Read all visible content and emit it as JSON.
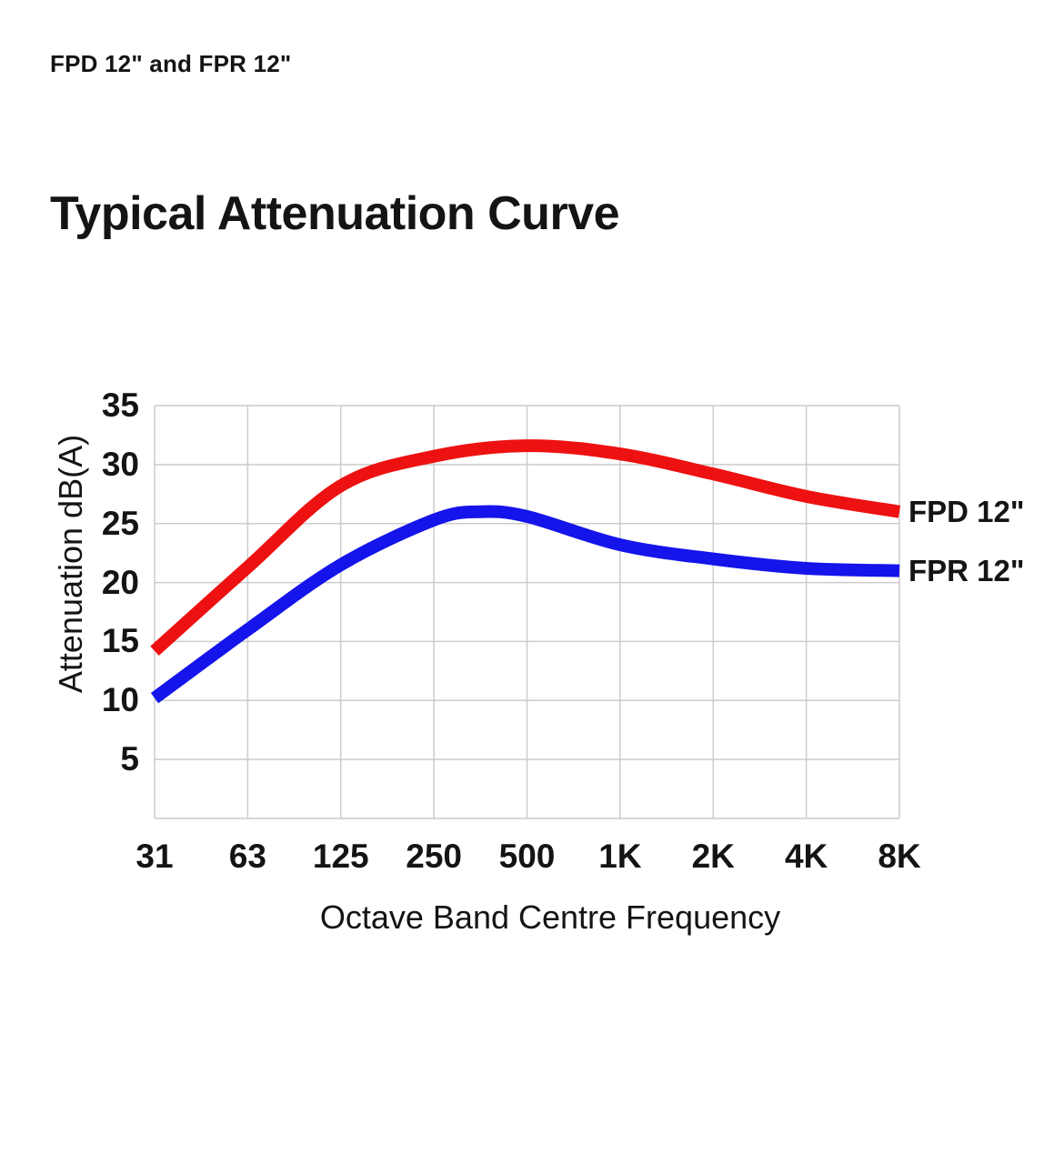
{
  "page": {
    "header_label": "FPD 12\" and FPR 12\""
  },
  "chart_data": {
    "type": "line",
    "title": "Typical Attenuation Curve",
    "xlabel": "Octave Band Centre Frequency",
    "ylabel": "Attenuation dB(A)",
    "categories": [
      "31",
      "63",
      "125",
      "250",
      "500",
      "1K",
      "2K",
      "4K",
      "8K"
    ],
    "category_freqs_hz": [
      31,
      63,
      125,
      250,
      500,
      1000,
      2000,
      4000,
      8000
    ],
    "y_ticks": [
      35,
      30,
      25,
      20,
      15,
      10,
      5
    ],
    "ylim": [
      0,
      35
    ],
    "x_scale": "octave-bands (equal spacing per octave)",
    "grid": true,
    "legend_position": "right-of-curve-end",
    "colors": {
      "fpd": "#ee1111",
      "fpr": "#1414eb",
      "grid": "#cccccc",
      "text": "#141414"
    },
    "series": [
      {
        "name": "FPD 12\"",
        "color_key": "fpd",
        "points": [
          [
            31,
            14.2
          ],
          [
            63,
            21.3
          ],
          [
            125,
            28.2
          ],
          [
            250,
            30.7
          ],
          [
            500,
            31.6
          ],
          [
            1000,
            30.9
          ],
          [
            2000,
            29.2
          ],
          [
            4000,
            27.3
          ],
          [
            8000,
            26
          ]
        ]
      },
      {
        "name": "FPR 12\"",
        "color_key": "fpr",
        "points": [
          [
            31,
            10.2
          ],
          [
            63,
            16
          ],
          [
            125,
            21.5
          ],
          [
            250,
            25.3
          ],
          [
            350,
            26
          ],
          [
            500,
            25.6
          ],
          [
            1000,
            23.2
          ],
          [
            2000,
            22
          ],
          [
            4000,
            21.2
          ],
          [
            8000,
            21
          ]
        ]
      }
    ]
  }
}
